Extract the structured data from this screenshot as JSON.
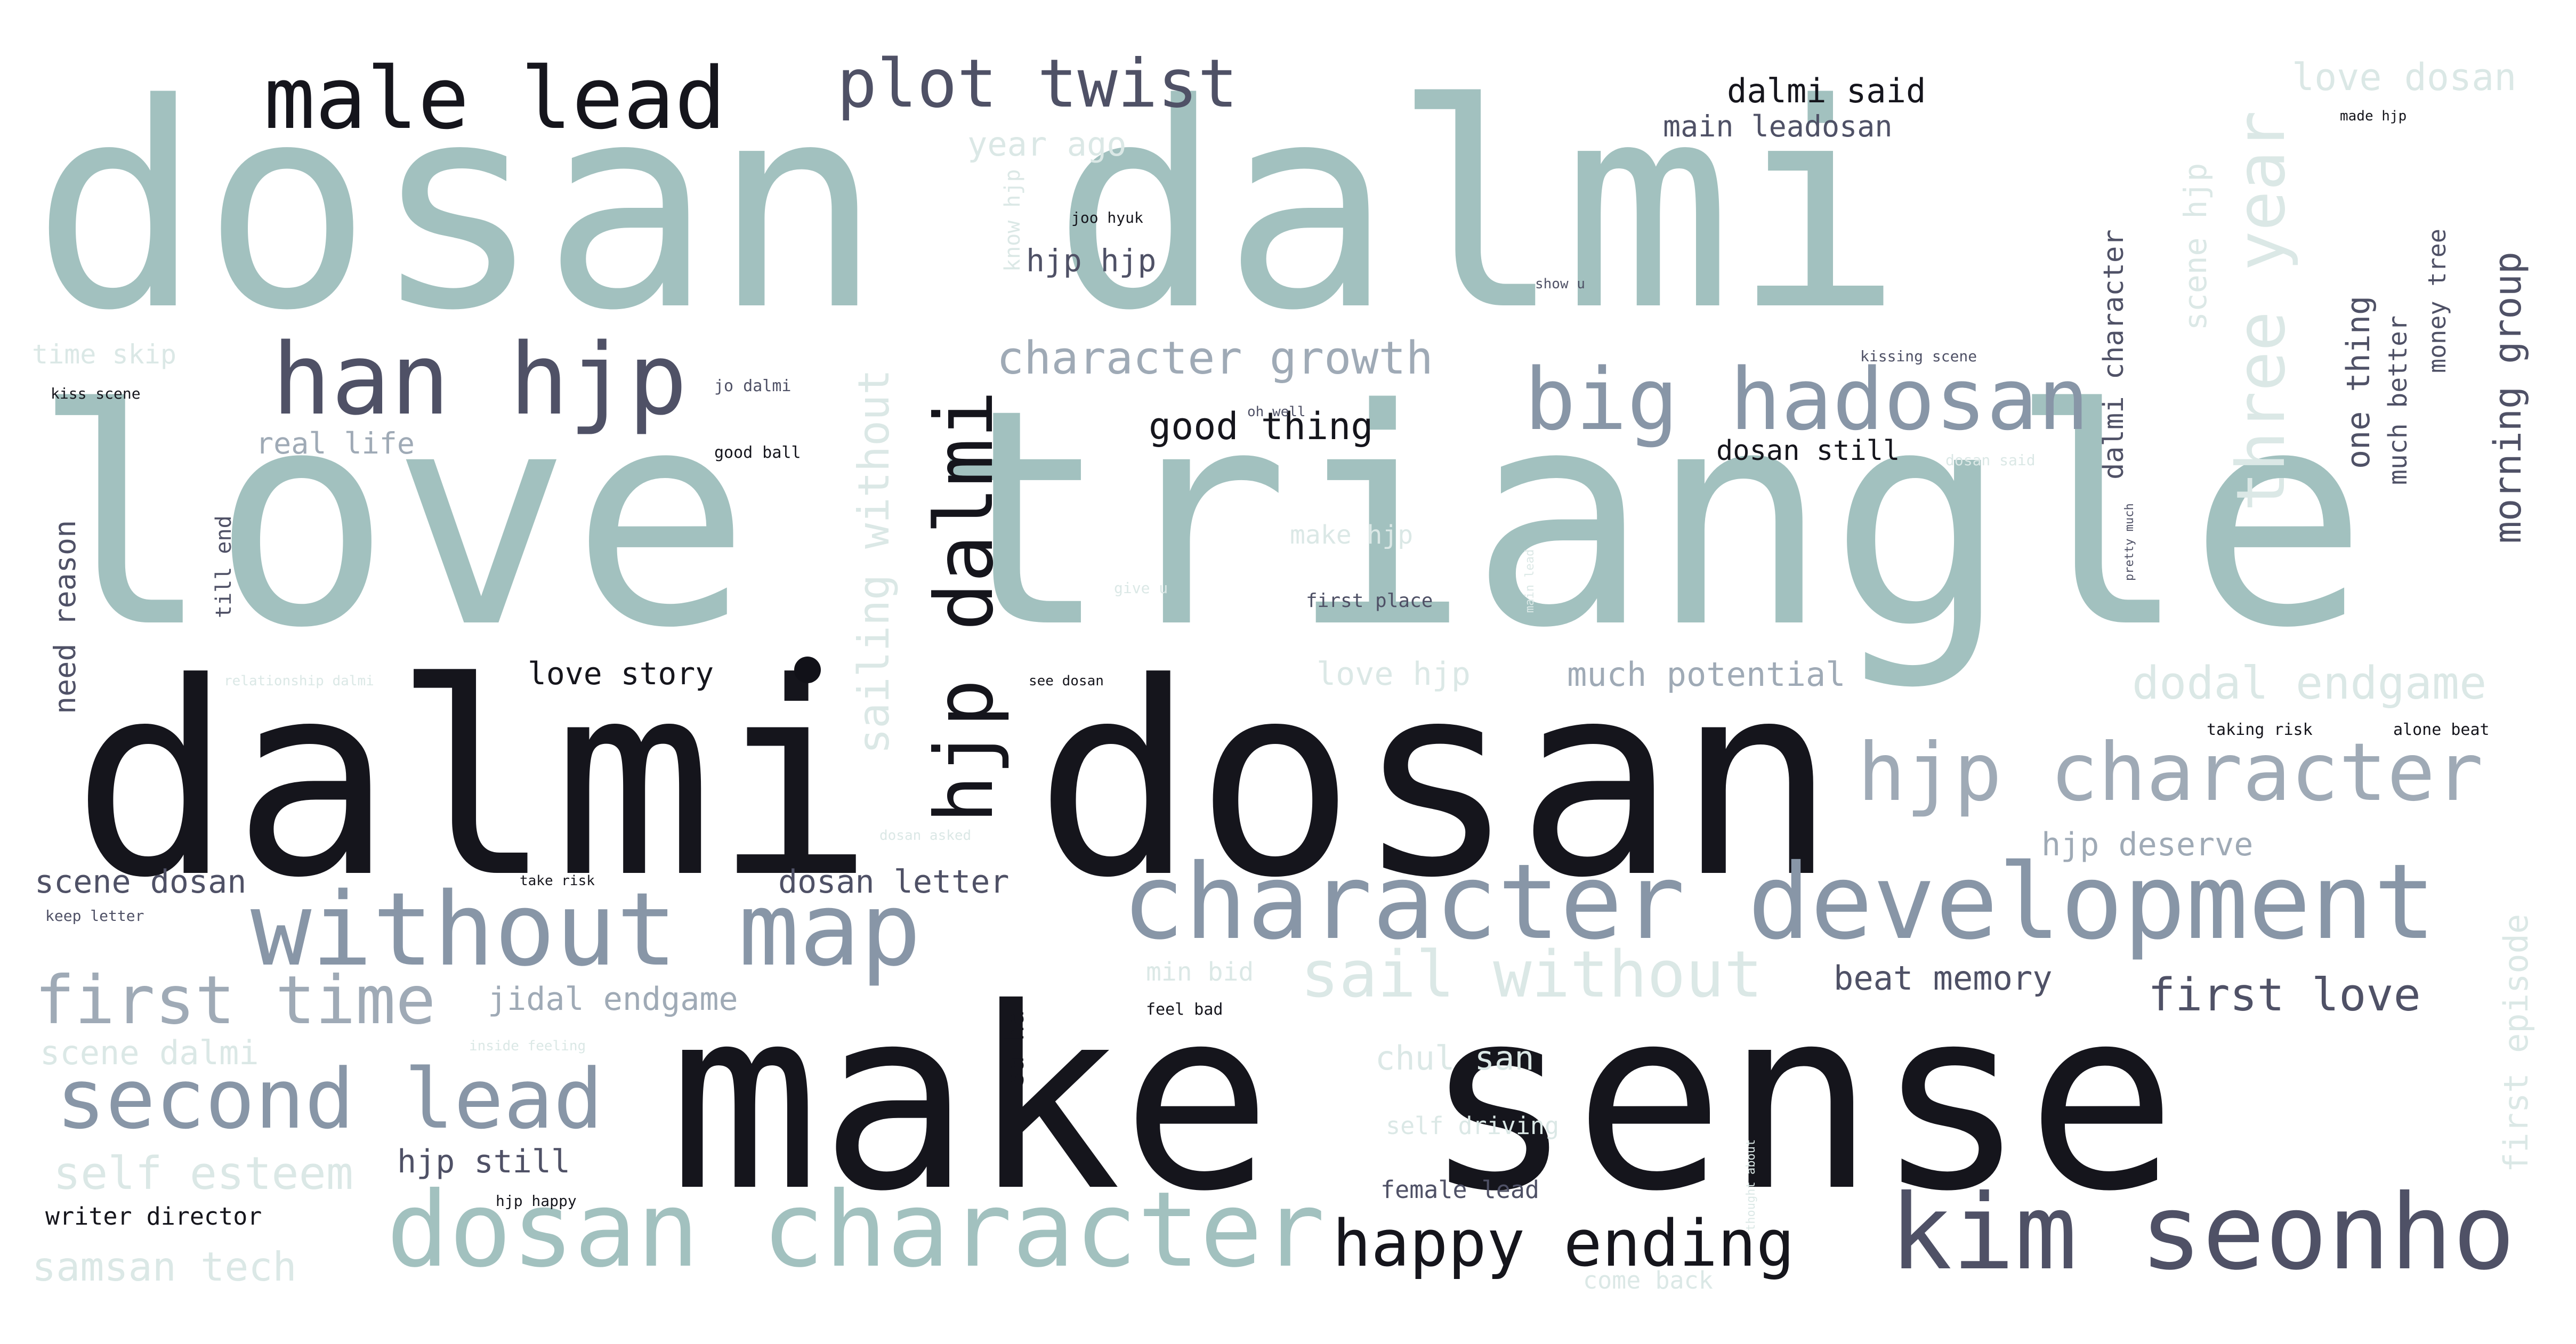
{
  "palette": {
    "sage": "#a2c1bf",
    "pale": "#dbe8e6",
    "slate": "#8896a7",
    "steel": "#9faab6",
    "navy": "#4f5166",
    "ink": "#15151c"
  },
  "words": [
    {
      "id": "w01",
      "text": "love triangle",
      "color": "sage"
    },
    {
      "id": "w02",
      "text": "dosan dalmi",
      "color": "sage"
    },
    {
      "id": "w03",
      "text": "dalmi dosan",
      "color": "ink"
    },
    {
      "id": "w04",
      "text": "make sense",
      "color": "ink"
    },
    {
      "id": "w05",
      "text": "character development",
      "color": "slate"
    },
    {
      "id": "w06",
      "text": "dosan character",
      "color": "sage"
    },
    {
      "id": "w07",
      "text": "kim seonho",
      "color": "navy"
    },
    {
      "id": "w08",
      "text": "without map",
      "color": "slate"
    },
    {
      "id": "w09",
      "text": "male lead",
      "color": "ink"
    },
    {
      "id": "w10",
      "text": "han hjp",
      "color": "navy"
    },
    {
      "id": "w11",
      "text": "hjp character",
      "color": "steel"
    },
    {
      "id": "w12",
      "text": "big hadosan",
      "color": "slate"
    },
    {
      "id": "w13",
      "text": "plot twist",
      "color": "navy"
    },
    {
      "id": "w14",
      "text": "second lead",
      "color": "slate"
    },
    {
      "id": "w15",
      "text": "happy ending",
      "color": "ink"
    },
    {
      "id": "w16",
      "text": "hjp dalmi",
      "color": "ink"
    },
    {
      "id": "w17",
      "text": "sail without",
      "color": "pale"
    },
    {
      "id": "w18",
      "text": "first time",
      "color": "steel"
    },
    {
      "id": "w19",
      "text": "three year",
      "color": "pale"
    },
    {
      "id": "w20",
      "text": "dodal endgame",
      "color": "pale"
    },
    {
      "id": "w21",
      "text": "character growth",
      "color": "steel"
    },
    {
      "id": "w22",
      "text": "sailing without",
      "color": "pale"
    },
    {
      "id": "w23",
      "text": "first love",
      "color": "navy"
    },
    {
      "id": "w24",
      "text": "self esteem",
      "color": "pale"
    },
    {
      "id": "w25",
      "text": "samsan tech",
      "color": "pale"
    },
    {
      "id": "w26",
      "text": "morning group",
      "color": "navy"
    },
    {
      "id": "w27",
      "text": "first episode",
      "color": "pale"
    },
    {
      "id": "w28",
      "text": "love dosan",
      "color": "pale"
    },
    {
      "id": "w29",
      "text": "dalmi said",
      "color": "ink"
    },
    {
      "id": "w30",
      "text": "main leadosan",
      "color": "navy"
    },
    {
      "id": "w31",
      "text": "year ago",
      "color": "pale"
    },
    {
      "id": "w32",
      "text": "hjp hjp",
      "color": "navy"
    },
    {
      "id": "w33",
      "text": "good thing",
      "color": "ink"
    },
    {
      "id": "w34",
      "text": "dosan still",
      "color": "ink"
    },
    {
      "id": "w35",
      "text": "love story",
      "color": "ink"
    },
    {
      "id": "w36",
      "text": "love hjp",
      "color": "pale"
    },
    {
      "id": "w37",
      "text": "much potential",
      "color": "steel"
    },
    {
      "id": "w38",
      "text": "scene dosan",
      "color": "navy"
    },
    {
      "id": "w39",
      "text": "dosan letter",
      "color": "navy"
    },
    {
      "id": "w40",
      "text": "hjp deserve",
      "color": "steel"
    },
    {
      "id": "w41",
      "text": "jidal endgame",
      "color": "steel"
    },
    {
      "id": "w42",
      "text": "beat memory",
      "color": "navy"
    },
    {
      "id": "w43",
      "text": "scene dalmi",
      "color": "pale"
    },
    {
      "id": "w44",
      "text": "chul san",
      "color": "pale"
    },
    {
      "id": "w45",
      "text": "hjp still",
      "color": "navy"
    },
    {
      "id": "w46",
      "text": "writer director",
      "color": "ink"
    },
    {
      "id": "w47",
      "text": "female lead",
      "color": "navy"
    },
    {
      "id": "w48",
      "text": "real life",
      "color": "steel"
    },
    {
      "id": "w49",
      "text": "need reason",
      "color": "navy"
    },
    {
      "id": "w50",
      "text": "time skip",
      "color": "pale"
    },
    {
      "id": "w51",
      "text": "min bid",
      "color": "pale"
    },
    {
      "id": "w52",
      "text": "make hjp",
      "color": "pale"
    },
    {
      "id": "w53",
      "text": "first place",
      "color": "navy"
    },
    {
      "id": "w54",
      "text": "dalmi character",
      "color": "navy"
    },
    {
      "id": "w55",
      "text": "scene hjp",
      "color": "pale"
    },
    {
      "id": "w56",
      "text": "one thing",
      "color": "navy"
    },
    {
      "id": "w57",
      "text": "much better",
      "color": "navy"
    },
    {
      "id": "w58",
      "text": "money tree",
      "color": "navy"
    },
    {
      "id": "w59",
      "text": "till end",
      "color": "navy"
    },
    {
      "id": "w60",
      "text": "kiss scene",
      "color": "ink"
    },
    {
      "id": "w61",
      "text": "good ball",
      "color": "ink"
    },
    {
      "id": "w62",
      "text": "jo dalmi",
      "color": "navy"
    },
    {
      "id": "w63",
      "text": "joo hyuk",
      "color": "ink"
    },
    {
      "id": "w64",
      "text": "kissing scene",
      "color": "navy"
    },
    {
      "id": "w65",
      "text": "oh well",
      "color": "navy"
    },
    {
      "id": "w66",
      "text": "made hjp",
      "color": "ink"
    },
    {
      "id": "w67",
      "text": "taking risk",
      "color": "ink"
    },
    {
      "id": "w68",
      "text": "alone beat",
      "color": "ink"
    },
    {
      "id": "w69",
      "text": "relationship dalmi",
      "color": "pale"
    },
    {
      "id": "w70",
      "text": "see dosan",
      "color": "ink"
    },
    {
      "id": "w71",
      "text": "come back",
      "color": "pale"
    },
    {
      "id": "w72",
      "text": "self driving",
      "color": "pale"
    },
    {
      "id": "w73",
      "text": "hjp happy",
      "color": "ink"
    },
    {
      "id": "w74",
      "text": "keep letter",
      "color": "navy"
    },
    {
      "id": "w75",
      "text": "take risk",
      "color": "ink"
    },
    {
      "id": "w76",
      "text": "inside feeling",
      "color": "pale"
    },
    {
      "id": "w77",
      "text": "feel bad",
      "color": "ink"
    },
    {
      "id": "w78",
      "text": "dosan asked",
      "color": "pale"
    },
    {
      "id": "w79",
      "text": "main lead",
      "color": "pale"
    },
    {
      "id": "w80",
      "text": "know hjp",
      "color": "pale"
    },
    {
      "id": "w81",
      "text": "give u",
      "color": "pale"
    },
    {
      "id": "w82",
      "text": "pretty much",
      "color": "navy"
    },
    {
      "id": "w83",
      "text": "sa ha",
      "color": "ink"
    },
    {
      "id": "w84",
      "text": "show u",
      "color": "navy"
    },
    {
      "id": "w85",
      "text": "dosan said",
      "color": "pale"
    },
    {
      "id": "w86",
      "text": "thought about",
      "color": "pale"
    }
  ]
}
